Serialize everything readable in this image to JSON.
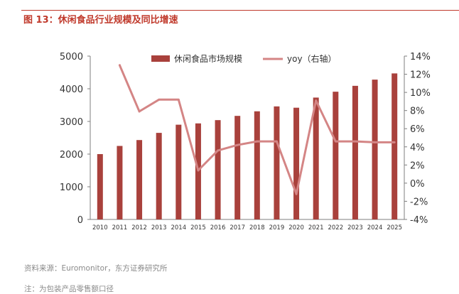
{
  "figure": {
    "title": "图 13：休闲食品行业规模及同比增速",
    "source": "资料来源：Euromonitor，东方证券研究所",
    "note": "注：为包装产品零售额口径"
  },
  "colors": {
    "accent": "#c0392b",
    "bar": "#a9413c",
    "line": "#d48585",
    "axis": "#7f7f7f",
    "text": "#333333"
  },
  "chart_data": {
    "type": "bar",
    "categories": [
      "2010",
      "2011",
      "2012",
      "2013",
      "2014",
      "2015",
      "2016",
      "2017",
      "2018",
      "2019",
      "2020",
      "2021",
      "2022",
      "2023",
      "2024",
      "2025"
    ],
    "series": [
      {
        "name": "休闲食品市场规模",
        "type": "bar",
        "axis": "left",
        "values": [
          2000,
          2250,
          2430,
          2650,
          2900,
          2940,
          3040,
          3170,
          3310,
          3460,
          3420,
          3730,
          3910,
          4090,
          4280,
          4470
        ]
      },
      {
        "name": "yoy（右轴）",
        "type": "line",
        "axis": "right",
        "values": [
          null,
          13.0,
          7.9,
          9.2,
          9.2,
          1.4,
          3.6,
          4.2,
          4.6,
          4.6,
          -1.2,
          9.1,
          4.6,
          4.6,
          4.5,
          4.5
        ]
      }
    ],
    "left_axis": {
      "min": 0,
      "max": 5000,
      "ticks": [
        "0",
        "1000",
        "2000",
        "3000",
        "4000",
        "5000"
      ]
    },
    "right_axis": {
      "min": -4,
      "max": 14,
      "ticks": [
        "-4%",
        "-2%",
        "0%",
        "2%",
        "4%",
        "6%",
        "8%",
        "10%",
        "12%",
        "14%"
      ]
    },
    "legend": {
      "placement": "top"
    }
  }
}
